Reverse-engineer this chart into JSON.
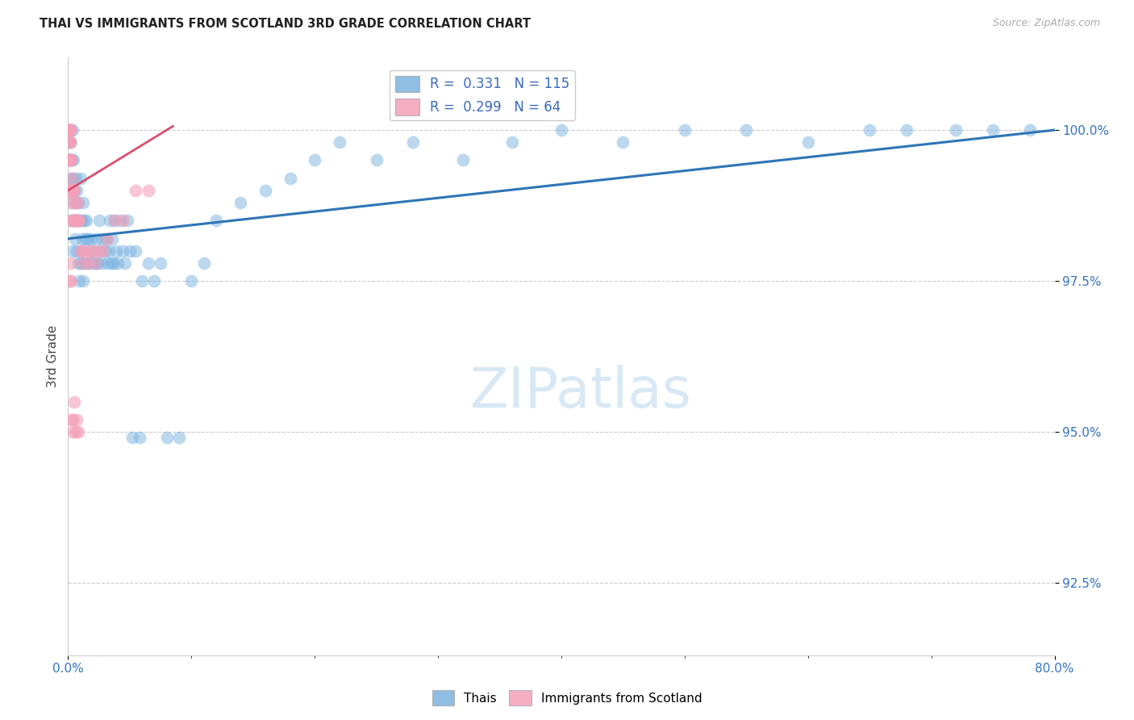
{
  "title": "THAI VS IMMIGRANTS FROM SCOTLAND 3RD GRADE CORRELATION CHART",
  "source": "Source: ZipAtlas.com",
  "ylabel": "3rd Grade",
  "y_ticks": [
    92.5,
    95.0,
    97.5,
    100.0
  ],
  "y_tick_labels": [
    "92.5%",
    "95.0%",
    "97.5%",
    "100.0%"
  ],
  "x_min": 0.0,
  "x_max": 80.0,
  "y_min": 91.3,
  "y_max": 101.2,
  "blue_color": "#7ab3e0",
  "pink_color": "#f4a0b8",
  "blue_line_color": "#2e75b6",
  "pink_line_color": "#d94f6e",
  "tick_color": "#3373c4",
  "watermark_color": "#d8e8f5",
  "thais_x": [
    0.15,
    0.15,
    0.15,
    0.15,
    0.15,
    0.2,
    0.25,
    0.3,
    0.3,
    0.35,
    0.4,
    0.4,
    0.45,
    0.5,
    0.5,
    0.55,
    0.6,
    0.6,
    0.65,
    0.7,
    0.7,
    0.75,
    0.8,
    0.85,
    0.9,
    0.9,
    1.0,
    1.0,
    1.05,
    1.1,
    1.15,
    1.2,
    1.2,
    1.3,
    1.3,
    1.4,
    1.5,
    1.5,
    1.6,
    1.7,
    1.8,
    1.9,
    2.0,
    2.1,
    2.2,
    2.3,
    2.4,
    2.5,
    2.6,
    2.7,
    2.8,
    3.0,
    3.1,
    3.2,
    3.3,
    3.4,
    3.5,
    3.6,
    3.7,
    3.8,
    3.9,
    4.0,
    4.2,
    4.4,
    4.6,
    4.8,
    5.0,
    5.2,
    5.5,
    5.8,
    6.0,
    6.5,
    7.0,
    7.5,
    8.0,
    9.0,
    10.0,
    11.0,
    12.0,
    14.0,
    16.0,
    18.0,
    20.0,
    22.0,
    25.0,
    28.0,
    32.0,
    36.0,
    40.0,
    45.0,
    50.0,
    55.0,
    60.0,
    65.0,
    68.0,
    72.0,
    75.0,
    78.0
  ],
  "thais_y": [
    98.5,
    99.2,
    99.5,
    99.8,
    100.0,
    99.8,
    99.0,
    99.5,
    98.8,
    100.0,
    99.2,
    98.0,
    99.5,
    98.5,
    99.0,
    98.2,
    98.8,
    99.2,
    98.5,
    98.0,
    99.0,
    98.5,
    97.8,
    98.8,
    97.5,
    98.5,
    98.0,
    99.2,
    97.8,
    98.5,
    98.2,
    97.5,
    98.8,
    97.8,
    98.5,
    98.2,
    97.8,
    98.5,
    98.2,
    97.8,
    98.0,
    98.2,
    97.8,
    98.0,
    97.8,
    98.2,
    97.8,
    98.5,
    98.0,
    97.8,
    98.2,
    98.0,
    98.2,
    97.8,
    98.0,
    98.5,
    97.8,
    98.2,
    97.8,
    98.5,
    98.0,
    97.8,
    98.5,
    98.0,
    97.8,
    98.5,
    98.0,
    94.9,
    98.0,
    94.9,
    97.5,
    97.8,
    97.5,
    97.8,
    94.9,
    94.9,
    97.5,
    97.8,
    98.5,
    98.8,
    99.0,
    99.2,
    99.5,
    99.8,
    99.5,
    99.8,
    99.5,
    99.8,
    100.0,
    99.8,
    100.0,
    100.0,
    99.8,
    100.0,
    100.0,
    100.0,
    100.0,
    100.0
  ],
  "scotland_x": [
    0.05,
    0.05,
    0.05,
    0.05,
    0.08,
    0.08,
    0.1,
    0.1,
    0.1,
    0.1,
    0.12,
    0.15,
    0.15,
    0.15,
    0.15,
    0.15,
    0.18,
    0.2,
    0.2,
    0.2,
    0.25,
    0.25,
    0.3,
    0.3,
    0.35,
    0.35,
    0.4,
    0.4,
    0.45,
    0.5,
    0.5,
    0.55,
    0.6,
    0.65,
    0.7,
    0.75,
    0.8,
    0.9,
    1.0,
    1.1,
    1.2,
    1.4,
    1.6,
    1.8,
    2.0,
    2.2,
    2.5,
    2.8,
    3.2,
    3.8,
    4.5,
    5.5,
    6.5,
    0.3,
    0.35,
    0.4,
    0.5,
    0.6,
    0.7,
    0.8,
    0.15,
    0.2,
    0.25
  ],
  "scotland_y": [
    99.0,
    99.5,
    100.0,
    100.0,
    99.5,
    100.0,
    99.0,
    99.5,
    99.8,
    100.0,
    99.5,
    99.0,
    99.5,
    99.8,
    100.0,
    100.0,
    99.0,
    99.5,
    99.8,
    100.0,
    99.0,
    99.5,
    98.8,
    99.2,
    98.5,
    99.0,
    98.5,
    99.0,
    98.5,
    98.5,
    99.0,
    98.5,
    98.8,
    98.5,
    98.5,
    98.8,
    98.5,
    98.5,
    98.0,
    98.0,
    97.8,
    98.0,
    97.8,
    98.0,
    98.0,
    97.8,
    98.0,
    98.0,
    98.2,
    98.5,
    98.5,
    99.0,
    99.0,
    95.2,
    95.0,
    95.2,
    95.5,
    95.0,
    95.2,
    95.0,
    97.5,
    97.5,
    97.8
  ]
}
